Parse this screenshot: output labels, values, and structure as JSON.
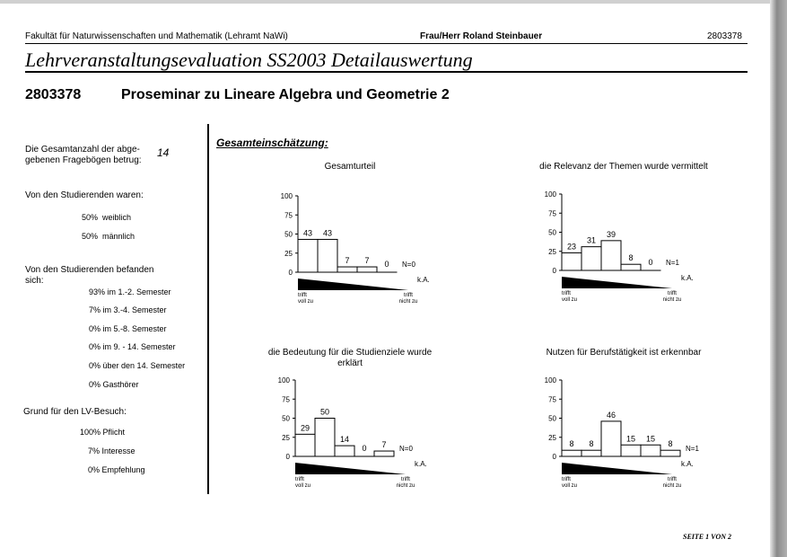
{
  "header": {
    "faculty": "Fakultät für Naturwissenschaften und Mathematik (Lehramt NaWi)",
    "lecturer": "Frau/Herr Roland Steinbauer",
    "course_id": "2803378"
  },
  "document_title": "Lehrveranstaltungsevaluation SS2003 Detailauswertung",
  "course": {
    "number": "2803378",
    "title": "Proseminar zu Lineare Algebra und Geometrie 2"
  },
  "summary": {
    "total_label_line1": "Die Gesamtanzahl der abge-",
    "total_label_line2": "gebenen Fragebögen betrug:",
    "total_value": "14",
    "gender_heading": "Von den Studierenden waren:",
    "gender": [
      {
        "pct": "50%",
        "label": "weiblich"
      },
      {
        "pct": "50%",
        "label": "männlich"
      }
    ],
    "semester_heading_line1": "Von den Studierenden befanden",
    "semester_heading_line2": "sich:",
    "semesters": [
      {
        "pct": "93%",
        "label": "im 1.-2. Semester"
      },
      {
        "pct": "7%",
        "label": "im 3.-4. Semester"
      },
      {
        "pct": "0%",
        "label": "im 5.-8. Semester"
      },
      {
        "pct": "0%",
        "label": "im 9. - 14. Semester"
      },
      {
        "pct": "0%",
        "label": "über den 14. Semester"
      },
      {
        "pct": "0%",
        "label": "Gasthörer"
      }
    ],
    "reason_heading": "Grund für den LV-Besuch:",
    "reasons": [
      {
        "pct": "100%",
        "label": "Pflicht"
      },
      {
        "pct": "7%",
        "label": "Interesse"
      },
      {
        "pct": "0%",
        "label": "Empfehlung"
      }
    ]
  },
  "section_heading": "Gesamteinschätzung:",
  "scale_labels": {
    "left_line1": "trifft",
    "left_line2": "voll zu",
    "right_line1": "trifft",
    "right_line2": "nicht zu",
    "ka": "k.A."
  },
  "chart_data": [
    {
      "type": "bar",
      "title": "Gesamturteil",
      "categories": [
        "1",
        "2",
        "3",
        "4",
        "5"
      ],
      "values": [
        43,
        43,
        7,
        7,
        0
      ],
      "na_label": "N=0",
      "ylim": [
        0,
        100
      ],
      "yticks": [
        0,
        25,
        50,
        75,
        100
      ]
    },
    {
      "type": "bar",
      "title": "die Relevanz der Themen wurde vermittelt",
      "categories": [
        "1",
        "2",
        "3",
        "4",
        "5"
      ],
      "values": [
        23,
        31,
        39,
        8,
        0
      ],
      "na_label": "N=1",
      "ylim": [
        0,
        100
      ],
      "yticks": [
        0,
        25,
        50,
        75,
        100
      ]
    },
    {
      "type": "bar",
      "title": "die Bedeutung für die Studienziele wurde erklärt",
      "categories": [
        "1",
        "2",
        "3",
        "4",
        "5"
      ],
      "values": [
        29,
        50,
        14,
        0,
        7
      ],
      "na_label": "N=0",
      "ylim": [
        0,
        100
      ],
      "yticks": [
        0,
        25,
        50,
        75,
        100
      ]
    },
    {
      "type": "bar",
      "title": "Nutzen für Berufstätigkeit ist erkennbar",
      "categories": [
        "1",
        "2",
        "3",
        "4",
        "5",
        "6"
      ],
      "values": [
        8,
        8,
        46,
        15,
        15,
        8
      ],
      "na_label": "N=1",
      "ylim": [
        0,
        100
      ],
      "yticks": [
        0,
        25,
        50,
        75,
        100
      ]
    }
  ],
  "footer": "SEITE 1 VON 2"
}
